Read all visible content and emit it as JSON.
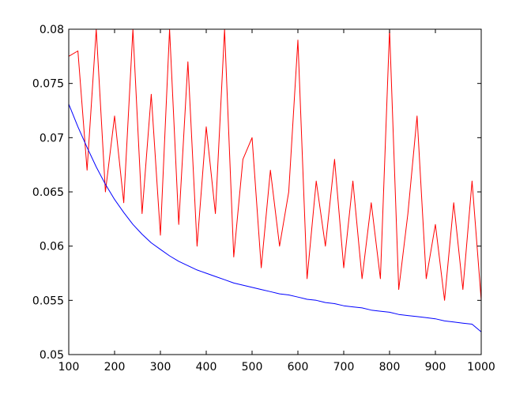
{
  "chart_data": {
    "type": "line",
    "title": "",
    "xlabel": "",
    "ylabel": "",
    "xlim": [
      100,
      1000
    ],
    "ylim": [
      0.05,
      0.08
    ],
    "grid": false,
    "legend": "none",
    "x_ticks": [
      100,
      200,
      300,
      400,
      500,
      600,
      700,
      800,
      900,
      1000
    ],
    "y_ticks": [
      0.05,
      0.055,
      0.06,
      0.065,
      0.07,
      0.075,
      0.08
    ],
    "x_tick_labels": [
      "100",
      "200",
      "300",
      "400",
      "500",
      "600",
      "700",
      "800",
      "900",
      "1000"
    ],
    "y_tick_labels": [
      "0.05",
      "0.055",
      "0.06",
      "0.065",
      "0.07",
      "0.075",
      "0.08"
    ],
    "x": [
      100,
      120,
      140,
      160,
      180,
      200,
      220,
      240,
      260,
      280,
      300,
      320,
      340,
      360,
      380,
      400,
      420,
      440,
      460,
      480,
      500,
      520,
      540,
      560,
      580,
      600,
      620,
      640,
      660,
      680,
      700,
      720,
      740,
      760,
      780,
      800,
      820,
      840,
      860,
      880,
      900,
      920,
      940,
      960,
      980,
      1000
    ],
    "series": [
      {
        "color": "#ff0000",
        "values": [
          0.0775,
          0.078,
          0.067,
          0.08,
          0.065,
          0.072,
          0.064,
          0.08,
          0.063,
          0.074,
          0.061,
          0.08,
          0.062,
          0.077,
          0.06,
          0.071,
          0.063,
          0.08,
          0.059,
          0.068,
          0.07,
          0.058,
          0.067,
          0.06,
          0.065,
          0.079,
          0.057,
          0.066,
          0.06,
          0.068,
          0.058,
          0.066,
          0.057,
          0.064,
          0.057,
          0.08,
          0.056,
          0.063,
          0.072,
          0.057,
          0.062,
          0.055,
          0.064,
          0.056,
          0.066,
          0.055
        ]
      },
      {
        "color": "#0000ff",
        "values": [
          0.0731,
          0.071,
          0.0691,
          0.0673,
          0.0657,
          0.0643,
          0.0631,
          0.062,
          0.0611,
          0.0603,
          0.0597,
          0.0591,
          0.0586,
          0.0582,
          0.0578,
          0.0575,
          0.0572,
          0.0569,
          0.0566,
          0.0564,
          0.0562,
          0.056,
          0.0558,
          0.0556,
          0.0555,
          0.0553,
          0.0551,
          0.055,
          0.0548,
          0.0547,
          0.0545,
          0.0544,
          0.0543,
          0.0541,
          0.054,
          0.0539,
          0.0537,
          0.0536,
          0.0535,
          0.0534,
          0.0533,
          0.0531,
          0.053,
          0.0529,
          0.0528,
          0.0521
        ]
      }
    ]
  }
}
